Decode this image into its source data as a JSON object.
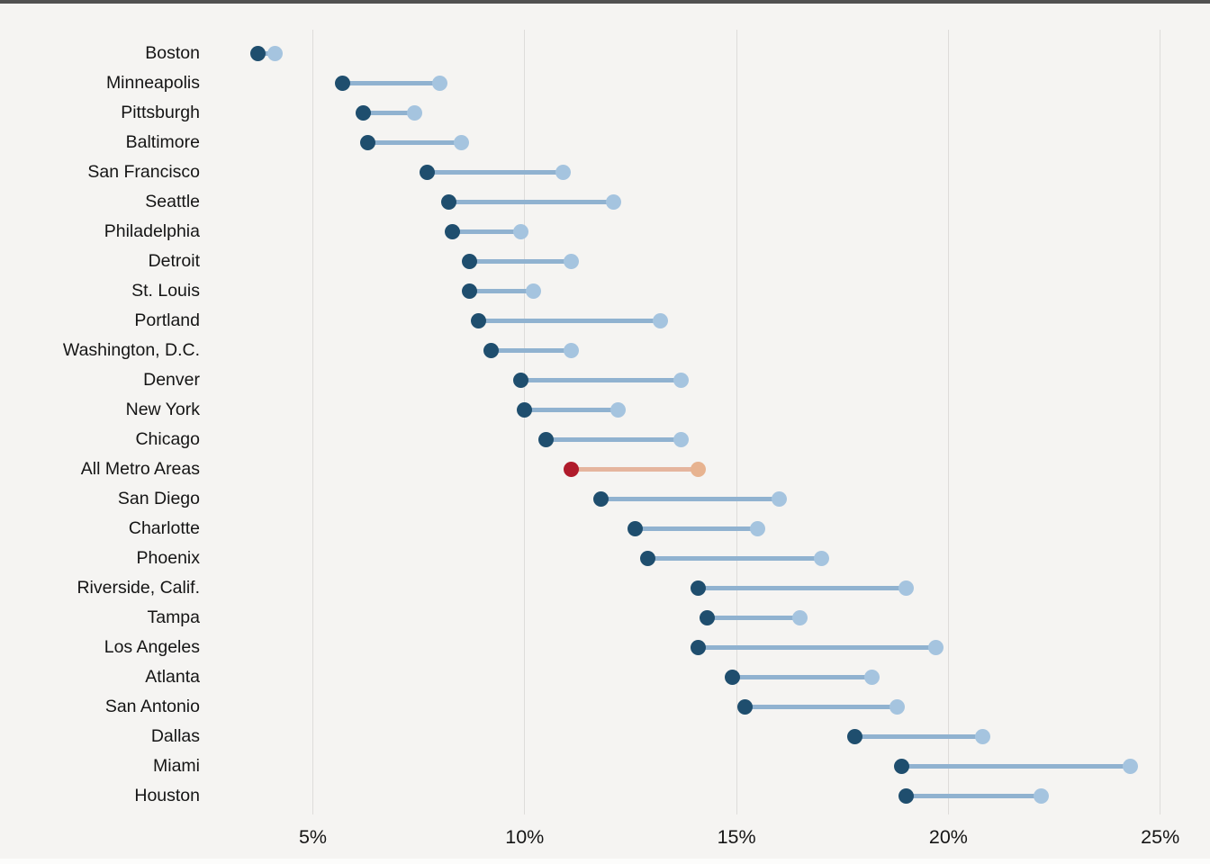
{
  "page": {
    "background": "#f5f4f2",
    "top_border_color": "#515151",
    "bottom_strip_color": "#fcfcfb",
    "gridline_color": "#dedcda",
    "text_color": "#151515"
  },
  "chart_data": {
    "type": "dumbbell",
    "orientation": "horizontal",
    "title": "",
    "xlabel": "",
    "ylabel": "",
    "grid": true,
    "legend": false,
    "x_axis": {
      "ticks": [
        5,
        10,
        15,
        20,
        25
      ],
      "tick_labels": [
        "5%",
        "10%",
        "15%",
        "20%",
        "25%"
      ],
      "unit": "percent",
      "min": 5,
      "max": 25
    },
    "colors": {
      "low_dot_blue": "#1f4e6e",
      "high_dot_blue": "#a5c4df",
      "connector_blue": "#90b2d0",
      "low_dot_highlight": "#b01b2b",
      "high_dot_highlight": "#e7b390",
      "connector_highlight": "#e5b59e"
    },
    "rows": [
      {
        "label": "Boston",
        "low": 3.7,
        "high": 4.1,
        "highlight": false
      },
      {
        "label": "Minneapolis",
        "low": 5.7,
        "high": 8.0,
        "highlight": false
      },
      {
        "label": "Pittsburgh",
        "low": 6.2,
        "high": 7.4,
        "highlight": false
      },
      {
        "label": "Baltimore",
        "low": 6.3,
        "high": 8.5,
        "highlight": false
      },
      {
        "label": "San Francisco",
        "low": 7.7,
        "high": 10.9,
        "highlight": false
      },
      {
        "label": "Seattle",
        "low": 8.2,
        "high": 12.1,
        "highlight": false
      },
      {
        "label": "Philadelphia",
        "low": 8.3,
        "high": 9.9,
        "highlight": false
      },
      {
        "label": "Detroit",
        "low": 8.7,
        "high": 11.1,
        "highlight": false
      },
      {
        "label": "St. Louis",
        "low": 8.7,
        "high": 10.2,
        "highlight": false
      },
      {
        "label": "Portland",
        "low": 8.9,
        "high": 13.2,
        "highlight": false
      },
      {
        "label": "Washington, D.C.",
        "low": 9.2,
        "high": 11.1,
        "highlight": false
      },
      {
        "label": "Denver",
        "low": 9.9,
        "high": 13.7,
        "highlight": false
      },
      {
        "label": "New York",
        "low": 10.0,
        "high": 12.2,
        "highlight": false
      },
      {
        "label": "Chicago",
        "low": 10.5,
        "high": 13.7,
        "highlight": false
      },
      {
        "label": "All Metro Areas",
        "low": 11.1,
        "high": 14.1,
        "highlight": true
      },
      {
        "label": "San Diego",
        "low": 11.8,
        "high": 16.0,
        "highlight": false
      },
      {
        "label": "Charlotte",
        "low": 12.6,
        "high": 15.5,
        "highlight": false
      },
      {
        "label": "Phoenix",
        "low": 12.9,
        "high": 17.0,
        "highlight": false
      },
      {
        "label": "Riverside, Calif.",
        "low": 14.1,
        "high": 19.0,
        "highlight": false
      },
      {
        "label": "Tampa",
        "low": 14.3,
        "high": 16.5,
        "highlight": false
      },
      {
        "label": "Los Angeles",
        "low": 14.1,
        "high": 19.7,
        "highlight": false
      },
      {
        "label": "Atlanta",
        "low": 14.9,
        "high": 18.2,
        "highlight": false
      },
      {
        "label": "San Antonio",
        "low": 15.2,
        "high": 18.8,
        "highlight": false
      },
      {
        "label": "Dallas",
        "low": 17.8,
        "high": 20.8,
        "highlight": false
      },
      {
        "label": "Miami",
        "low": 18.9,
        "high": 24.3,
        "highlight": false
      },
      {
        "label": "Houston",
        "low": 19.0,
        "high": 22.2,
        "highlight": false
      }
    ]
  }
}
